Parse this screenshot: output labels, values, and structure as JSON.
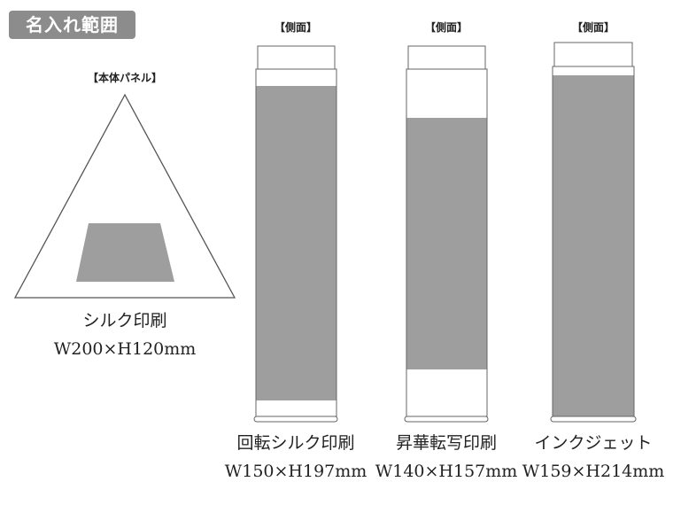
{
  "badge": "名入れ範囲",
  "panel": {
    "header": "【本体パネル】",
    "method": "シルク印刷",
    "size": "W200×H120mm"
  },
  "sides": [
    {
      "header": "【側面】",
      "method": "回転シルク印刷",
      "size": "W150×H197mm"
    },
    {
      "header": "【側面】",
      "method": "昇華転写印刷",
      "size": "W140×H157mm"
    },
    {
      "header": "【側面】",
      "method": "インクジェット",
      "size": "W159×H214mm"
    }
  ],
  "colors": {
    "print_area": "#9d9e9d",
    "outline": "#555555",
    "badge": "#8c8c8c"
  }
}
